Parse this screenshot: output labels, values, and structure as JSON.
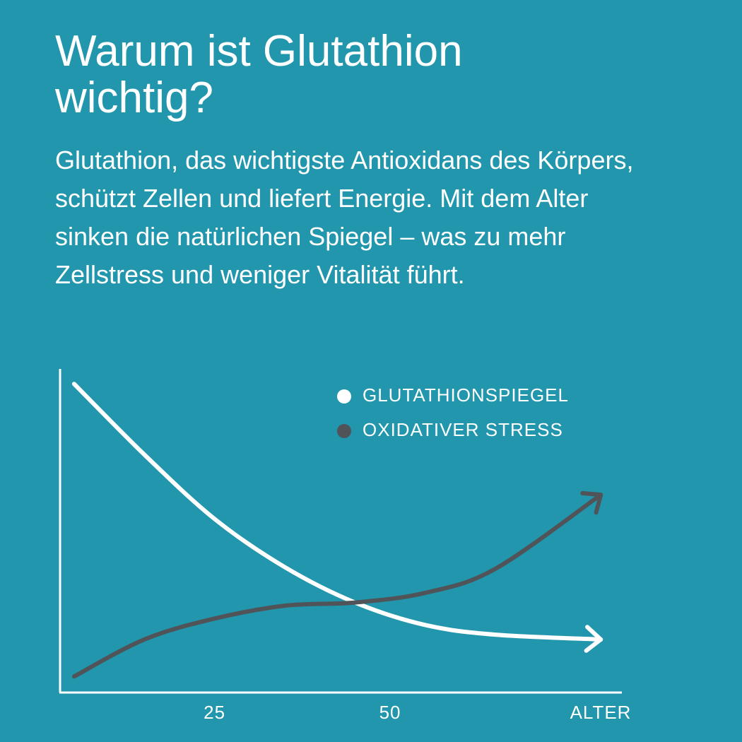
{
  "chart_data": {
    "type": "line",
    "title": "Warum ist Glutathion wichtig?",
    "subtitle": "Glutathion, das wichtigste Antioxidans des Körpers, schützt Zellen und liefert Energie. Mit dem Alter sinken die natürlichen Spiegel – was zu mehr Zellstress und weniger Vitalität führt.",
    "x_label": "ALTER",
    "x": [
      5,
      15,
      25,
      35,
      45,
      55,
      65,
      80
    ],
    "xlim": [
      3,
      83
    ],
    "xticks": [
      25,
      50
    ],
    "ylim": [
      0,
      100
    ],
    "series": [
      {
        "name": "GLUTATHIONSPIEGEL",
        "color": "#ffffff",
        "values": [
          96,
          74,
          54,
          39,
          28,
          21,
          18,
          16.5
        ]
      },
      {
        "name": "OXIDATIVER STRESS",
        "color": "#505458",
        "values": [
          5,
          16.5,
          23,
          27,
          28,
          31,
          38.5,
          61.5
        ]
      }
    ],
    "legend": "upper right"
  }
}
